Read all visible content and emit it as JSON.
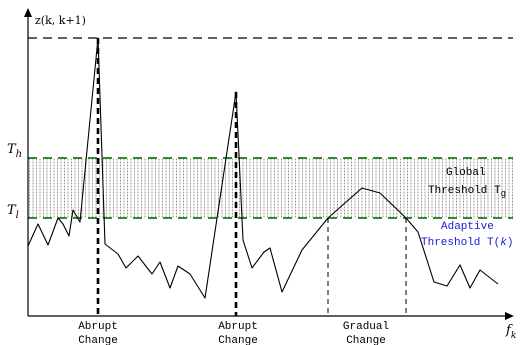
{
  "figure": {
    "y_axis_label": "z(k, k+1)",
    "x_axis_label": "f",
    "x_axis_subscript": "k",
    "th_label": "T",
    "th_subscript": "h",
    "tl_label": "T",
    "tl_subscript": "l",
    "global_threshold": {
      "line1": "Global",
      "line2": "Threshold T",
      "subscript": "g"
    },
    "adaptive_threshold": {
      "line1": "Adaptive",
      "line2": "Threshold T(",
      "italic": "k",
      "close": ")"
    },
    "events": [
      {
        "line1": "Abrupt",
        "line2": "Change"
      },
      {
        "line1": "Abrupt",
        "line2": "Change"
      },
      {
        "line1": "Gradual",
        "line2": "Change"
      }
    ],
    "colors": {
      "curve": "#000000",
      "threshold_lines": "#2e8b2e",
      "adaptive_text": "#1a1adf",
      "band_hatch": "#8a8a8a"
    }
  }
}
